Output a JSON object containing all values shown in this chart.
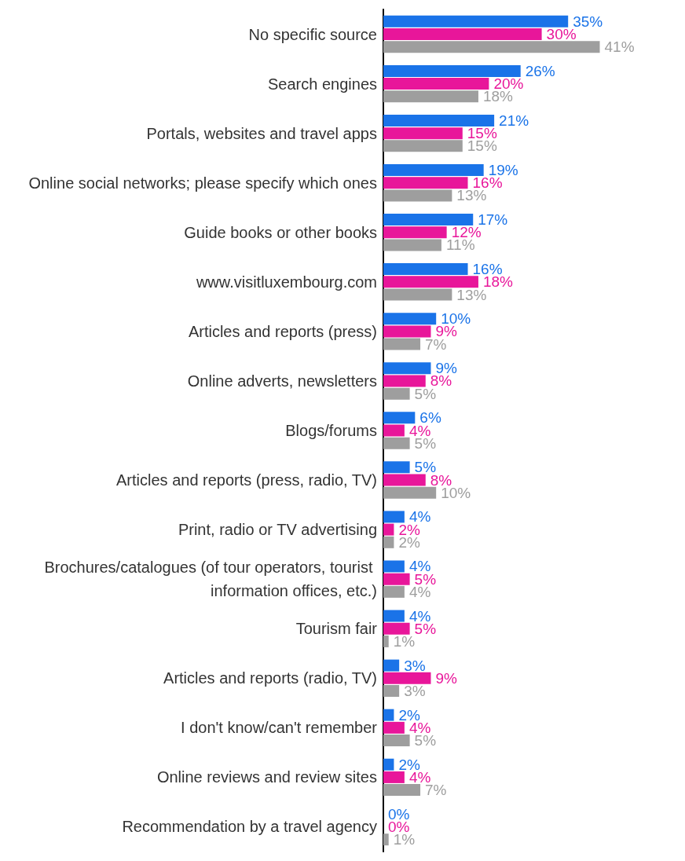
{
  "chart_data": {
    "type": "bar",
    "orientation": "horizontal",
    "categories": [
      "No specific source",
      "Search engines",
      "Portals, websites and travel apps",
      "Online social networks; please specify which ones",
      "Guide books or other books",
      "www.visitluxembourg.com",
      "Articles and reports (press)",
      "Online adverts, newsletters",
      "Blogs/forums",
      "Articles and reports (press, radio, TV)",
      "Print, radio or TV advertising",
      "Brochures/catalogues (of tour operators, tourist information offices, etc.)",
      "Tourism fair",
      "Articles and reports (radio, TV)",
      "I don't know/can't remember",
      "Online reviews and review sites",
      "Recommendation by a travel agency"
    ],
    "series": [
      {
        "color": "#1a73e8",
        "values": [
          35,
          26,
          21,
          19,
          17,
          16,
          10,
          9,
          6,
          5,
          4,
          4,
          4,
          3,
          2,
          2,
          0
        ],
        "value_labels": [
          "35%",
          "26%",
          "21%",
          "19%",
          "17%",
          "16%",
          "10%",
          "9%",
          "6%",
          "5%",
          "4%",
          "4%",
          "4%",
          "3%",
          "2%",
          "2%",
          "0%"
        ]
      },
      {
        "color": "#e8169a",
        "values": [
          30,
          20,
          15,
          16,
          12,
          18,
          9,
          8,
          4,
          8,
          2,
          5,
          5,
          9,
          4,
          4,
          0
        ],
        "value_labels": [
          "30%",
          "20%",
          "15%",
          "16%",
          "12%",
          "18%",
          "9%",
          "8%",
          "4%",
          "8%",
          "2%",
          "5%",
          "5%",
          "9%",
          "4%",
          "4%",
          "0%"
        ]
      },
      {
        "color": "#9e9e9e",
        "values": [
          41,
          18,
          15,
          13,
          11,
          13,
          7,
          5,
          5,
          10,
          2,
          4,
          1,
          3,
          5,
          7,
          1
        ],
        "value_labels": [
          "41%",
          "18%",
          "15%",
          "13%",
          "11%",
          "13%",
          "7%",
          "5%",
          "5%",
          "10%",
          "2%",
          "4%",
          "1%",
          "3%",
          "5%",
          "7%",
          "1%"
        ]
      }
    ]
  }
}
